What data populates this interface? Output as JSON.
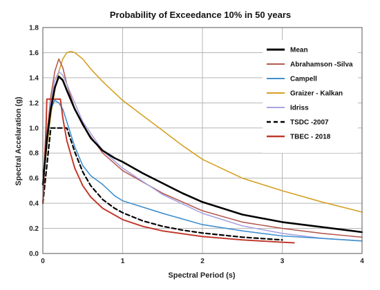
{
  "chart_data": {
    "type": "line",
    "title": "Probability of Exceedance 10% in 50 years",
    "xlabel": "Spectral Period (s)",
    "ylabel": "Spectral Accelaration (g)",
    "xlim": [
      0,
      4
    ],
    "ylim": [
      0,
      1.8
    ],
    "xticks": [
      0,
      1,
      2,
      3,
      4
    ],
    "xtick_labels": [
      "0",
      "1",
      "2",
      "3",
      "4"
    ],
    "yticks": [
      0.0,
      0.2,
      0.4,
      0.6,
      0.8,
      1.0,
      1.2,
      1.4,
      1.6,
      1.8
    ],
    "ytick_labels": [
      "0.0",
      "0.2",
      "0.4",
      "0.6",
      "0.8",
      "1.0",
      "1.2",
      "1.4",
      "1.6",
      "1.8"
    ],
    "grid": true,
    "legend_position": "top-right",
    "series": [
      {
        "name": "Mean",
        "color": "#000000",
        "dash": "solid",
        "width": 2.6,
        "x": [
          0,
          0.05,
          0.1,
          0.15,
          0.2,
          0.25,
          0.3,
          0.4,
          0.5,
          0.6,
          0.75,
          0.9,
          1.0,
          1.25,
          1.5,
          1.75,
          2.0,
          2.5,
          3.0,
          3.5,
          4.0
        ],
        "y": [
          0.55,
          0.9,
          1.15,
          1.32,
          1.41,
          1.38,
          1.3,
          1.15,
          1.03,
          0.92,
          0.82,
          0.76,
          0.73,
          0.64,
          0.56,
          0.48,
          0.41,
          0.31,
          0.25,
          0.21,
          0.17
        ]
      },
      {
        "name": "Abrahamson -Silva",
        "color": "#b35a50",
        "dash": "solid",
        "width": 1.6,
        "x": [
          0,
          0.05,
          0.1,
          0.15,
          0.2,
          0.25,
          0.3,
          0.4,
          0.5,
          0.75,
          1.0,
          1.5,
          2.0,
          2.5,
          3.0,
          3.5,
          4.0
        ],
        "y": [
          0.55,
          0.95,
          1.25,
          1.45,
          1.55,
          1.48,
          1.35,
          1.15,
          1.02,
          0.8,
          0.66,
          0.48,
          0.34,
          0.25,
          0.2,
          0.16,
          0.13
        ]
      },
      {
        "name": "Campell",
        "color": "#3f8fcf",
        "dash": "solid",
        "width": 1.6,
        "x": [
          0,
          0.05,
          0.1,
          0.15,
          0.2,
          0.25,
          0.3,
          0.4,
          0.5,
          0.6,
          0.75,
          0.9,
          1.0,
          1.5,
          2.0,
          2.5,
          3.0,
          3.5,
          4.0
        ],
        "y": [
          0.55,
          0.95,
          1.15,
          1.22,
          1.2,
          1.15,
          1.05,
          0.85,
          0.7,
          0.62,
          0.55,
          0.46,
          0.42,
          0.32,
          0.23,
          0.18,
          0.14,
          0.12,
          0.1
        ]
      },
      {
        "name": "Graizer - Kalkan",
        "color": "#d4a020",
        "dash": "solid",
        "width": 1.6,
        "x": [
          0,
          0.05,
          0.1,
          0.15,
          0.2,
          0.25,
          0.3,
          0.35,
          0.4,
          0.5,
          0.6,
          0.75,
          1.0,
          1.25,
          1.5,
          1.75,
          2.0,
          2.5,
          3.0,
          3.5,
          4.0
        ],
        "y": [
          0.55,
          0.85,
          1.1,
          1.3,
          1.45,
          1.55,
          1.6,
          1.61,
          1.6,
          1.55,
          1.47,
          1.37,
          1.22,
          1.1,
          0.98,
          0.86,
          0.75,
          0.6,
          0.5,
          0.41,
          0.33
        ]
      },
      {
        "name": "Idriss",
        "color": "#a7a3e3",
        "dash": "solid",
        "width": 1.6,
        "x": [
          0,
          0.05,
          0.1,
          0.15,
          0.2,
          0.25,
          0.3,
          0.4,
          0.5,
          0.75,
          1.0,
          1.5,
          2.0,
          2.5,
          3.0,
          3.5,
          4.0
        ],
        "y": [
          0.55,
          0.9,
          1.2,
          1.38,
          1.45,
          1.42,
          1.35,
          1.2,
          1.05,
          0.82,
          0.68,
          0.47,
          0.32,
          0.22,
          0.16,
          0.12,
          0.1
        ]
      },
      {
        "name": "TSDC -2007",
        "color": "#000000",
        "dash": "dashed",
        "width": 2.2,
        "x": [
          0,
          0.05,
          0.1,
          0.2,
          0.3,
          0.4,
          0.5,
          0.6,
          0.75,
          0.9,
          1.0,
          1.25,
          1.5,
          1.75,
          2.0,
          2.5,
          3.0
        ],
        "y": [
          0.4,
          0.7,
          1.0,
          1.0,
          1.0,
          0.81,
          0.65,
          0.54,
          0.43,
          0.36,
          0.325,
          0.26,
          0.217,
          0.186,
          0.163,
          0.13,
          0.108
        ]
      },
      {
        "name": "TBEC - 2018",
        "color": "#c0392b",
        "dash": "solid",
        "width": 2.0,
        "x": [
          0,
          0.04,
          0.05,
          0.1,
          0.15,
          0.2,
          0.22,
          0.25,
          0.3,
          0.4,
          0.5,
          0.6,
          0.75,
          1.0,
          1.25,
          1.5,
          2.0,
          2.5,
          3.0,
          3.15
        ],
        "y": [
          0.4,
          1.0,
          1.23,
          1.23,
          1.23,
          1.23,
          1.23,
          1.08,
          0.9,
          0.68,
          0.54,
          0.45,
          0.36,
          0.27,
          0.216,
          0.18,
          0.135,
          0.108,
          0.09,
          0.085
        ]
      }
    ]
  }
}
